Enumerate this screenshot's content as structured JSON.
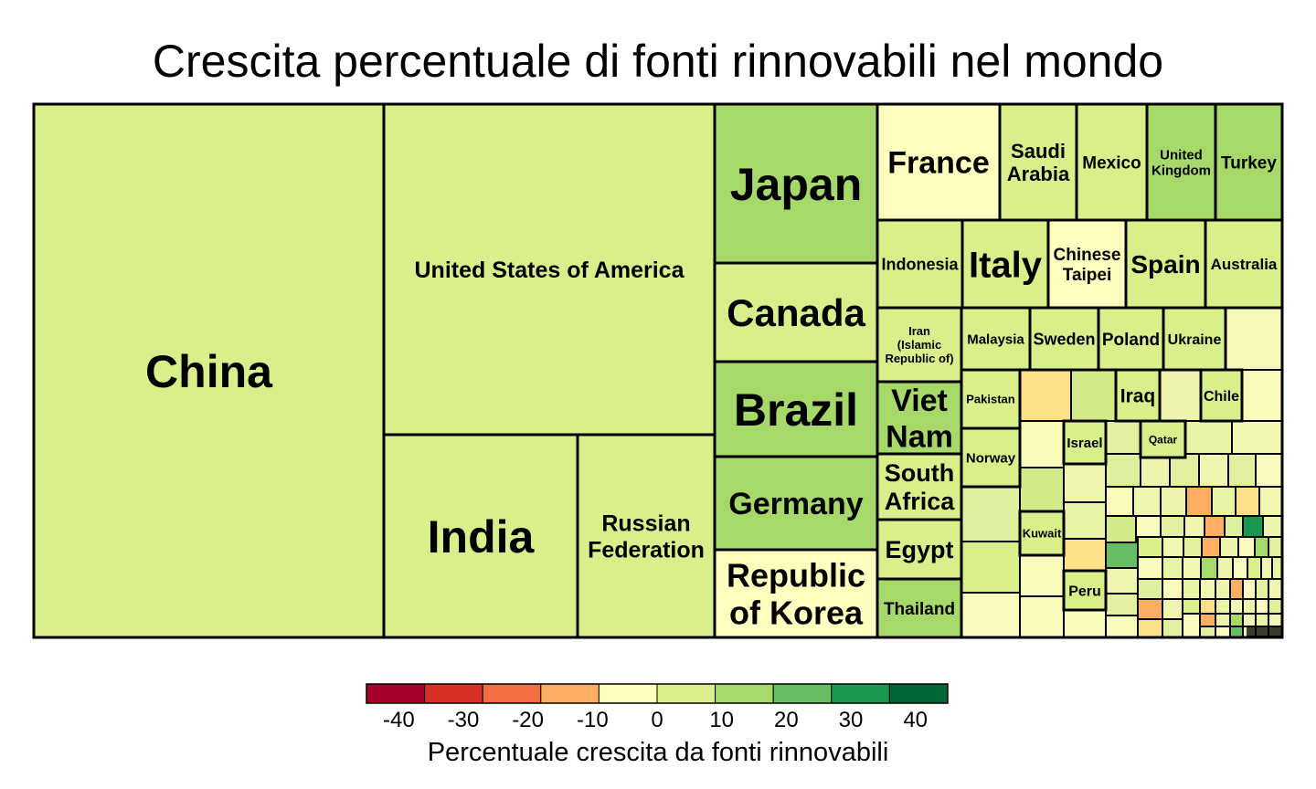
{
  "chart_data": {
    "type": "treemap",
    "title": "Crescita percentuale di fonti rinnovabili nel mondo",
    "legend": {
      "title": "Percentuale crescita da fonti rinnovabili",
      "ticks": [
        -40,
        -30,
        -20,
        -10,
        0,
        10,
        20,
        30,
        40
      ],
      "range": [
        -45,
        45
      ],
      "colors": [
        "#a50026",
        "#d73027",
        "#f46d43",
        "#fdae61",
        "#ffffbf",
        "#d9ef8b",
        "#a6d96a",
        "#66bd63",
        "#1a9850",
        "#006837"
      ],
      "placement": "bottom"
    },
    "items": [
      {
        "label": "China",
        "growth": 5
      },
      {
        "label": "United States of America",
        "growth": 4
      },
      {
        "label": "India",
        "growth": 1
      },
      {
        "label": "Russian Federation",
        "growth": 6
      },
      {
        "label": "Japan",
        "growth": 12
      },
      {
        "label": "Canada",
        "growth": 2
      },
      {
        "label": "Brazil",
        "growth": 11
      },
      {
        "label": "Germany",
        "growth": 10
      },
      {
        "label": "Republic of Korea",
        "growth": -3
      },
      {
        "label": "France",
        "growth": -3
      },
      {
        "label": "Saudi Arabia",
        "growth": 1
      },
      {
        "label": "Mexico",
        "growth": 3
      },
      {
        "label": "United Kingdom",
        "growth": 10
      },
      {
        "label": "Turkey",
        "growth": 15
      },
      {
        "label": "Indonesia",
        "growth": 4
      },
      {
        "label": "Italy",
        "growth": 1
      },
      {
        "label": "Chinese Taipei",
        "growth": -2
      },
      {
        "label": "Spain",
        "growth": 5
      },
      {
        "label": "Australia",
        "growth": 8
      },
      {
        "label": "Iran (Islamic Republic of)",
        "growth": 3
      },
      {
        "label": "Malaysia",
        "growth": 6
      },
      {
        "label": "Sweden",
        "growth": 4
      },
      {
        "label": "Poland",
        "growth": 2
      },
      {
        "label": "Ukraine",
        "growth": 5
      },
      {
        "label": "Viet Nam",
        "growth": 9
      },
      {
        "label": "South Africa",
        "growth": 4
      },
      {
        "label": "Egypt",
        "growth": 1
      },
      {
        "label": "Thailand",
        "growth": 12
      },
      {
        "label": "Pakistan",
        "growth": 1
      },
      {
        "label": "Iraq",
        "growth": 5
      },
      {
        "label": "Chile",
        "growth": 7
      },
      {
        "label": "Norway",
        "growth": 3
      },
      {
        "label": "Israel",
        "growth": 2
      },
      {
        "label": "Qatar",
        "growth": 1
      },
      {
        "label": "Kuwait",
        "growth": 1
      },
      {
        "label": "Peru",
        "growth": 3
      }
    ]
  }
}
